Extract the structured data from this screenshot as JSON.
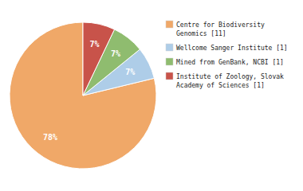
{
  "chart_data": {
    "type": "pie",
    "categories": [
      "Centre for Biodiversity\nGenomics [11]",
      "Wellcome Sanger Institute [1]",
      "Mined from GenBank, NCBI [1]",
      "Institute of Zoology, Slovak\nAcademy of Sciences [1]"
    ],
    "values": [
      78,
      7,
      7,
      7
    ],
    "value_labels": [
      "78%",
      "7%",
      "7%",
      "7%"
    ],
    "colors": [
      "#f0a868",
      "#aecde8",
      "#8fbc6f",
      "#c8534a"
    ],
    "data_labels": true,
    "legend": "right"
  }
}
